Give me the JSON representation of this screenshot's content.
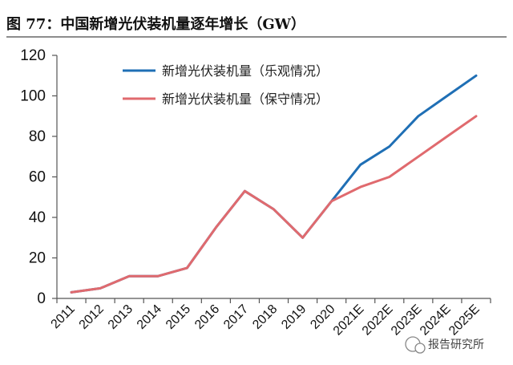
{
  "figure_title": "图 77：中国新增光伏装机量逐年增长（GW）",
  "watermark": "报告研究所",
  "chart_data": {
    "type": "line",
    "title": "图 77：中国新增光伏装机量逐年增长（GW）",
    "xlabel": "",
    "ylabel": "",
    "ylim": [
      0,
      120
    ],
    "yticks": [
      0,
      20,
      40,
      60,
      80,
      100,
      120
    ],
    "categories": [
      "2011",
      "2012",
      "2013",
      "2014",
      "2015",
      "2016",
      "2017",
      "2018",
      "2019",
      "2020",
      "2021E",
      "2022E",
      "2023E",
      "2024E",
      "2025E"
    ],
    "grid": false,
    "legend_position": "top-right",
    "series": [
      {
        "name": "新增光伏装机量（乐观情况）",
        "color": "#1f6fb5",
        "values": [
          3,
          5,
          11,
          11,
          15,
          35,
          53,
          44,
          30,
          48,
          66,
          75,
          90,
          100,
          110
        ]
      },
      {
        "name": "新增光伏装机量（保守情况）",
        "color": "#e06a6e",
        "values": [
          3,
          5,
          11,
          11,
          15,
          35,
          53,
          44,
          30,
          48,
          55,
          60,
          70,
          80,
          90
        ]
      }
    ]
  }
}
